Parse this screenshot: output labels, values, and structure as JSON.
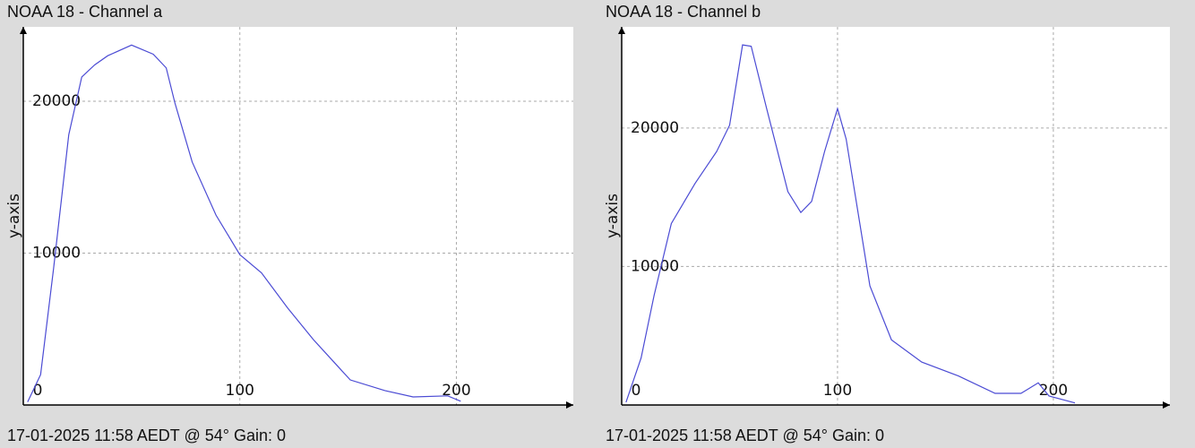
{
  "chart_data": [
    {
      "type": "line",
      "title": "NOAA 18 - Channel a",
      "y_label": "y-axis",
      "caption": "17-01-2025 11:58 AEDT @ 54° Gain: 0",
      "xlim": [
        0,
        254
      ],
      "ylim": [
        0,
        24900
      ],
      "xticks": [
        0,
        100,
        200
      ],
      "yticks": [
        10000,
        20000
      ],
      "grid": true,
      "series": [
        {
          "color": "#4b4bd4",
          "x": [
            2,
            8,
            14,
            21,
            27,
            33,
            39,
            50,
            60,
            66,
            70,
            78,
            89,
            100,
            110,
            122,
            134,
            151,
            167,
            180,
            196,
            202
          ],
          "values": [
            200,
            2000,
            9000,
            17800,
            21600,
            22400,
            23000,
            23700,
            23100,
            22200,
            19900,
            16000,
            12500,
            9900,
            8700,
            6400,
            4300,
            1650,
            950,
            530,
            600,
            250
          ]
        }
      ]
    },
    {
      "type": "line",
      "title": "NOAA 18 - Channel b",
      "y_label": "y-axis",
      "caption": "17-01-2025 11:58 AEDT @ 54° Gain: 0",
      "xlim": [
        0,
        254
      ],
      "ylim": [
        0,
        27300
      ],
      "xticks": [
        0,
        100,
        200
      ],
      "yticks": [
        10000,
        20000
      ],
      "grid": true,
      "series": [
        {
          "color": "#4b4bd4",
          "x": [
            2,
            9,
            15,
            23,
            34,
            44,
            50,
            56,
            60,
            67,
            77,
            83,
            88,
            94,
            100,
            104,
            115,
            125,
            139,
            156,
            173,
            185,
            193,
            198,
            210
          ],
          "values": [
            200,
            3400,
            7900,
            13100,
            16000,
            18300,
            20200,
            26000,
            25900,
            21500,
            15400,
            13900,
            14700,
            18300,
            21400,
            19200,
            8600,
            4700,
            3100,
            2100,
            840,
            840,
            1600,
            650,
            150
          ]
        }
      ]
    }
  ]
}
